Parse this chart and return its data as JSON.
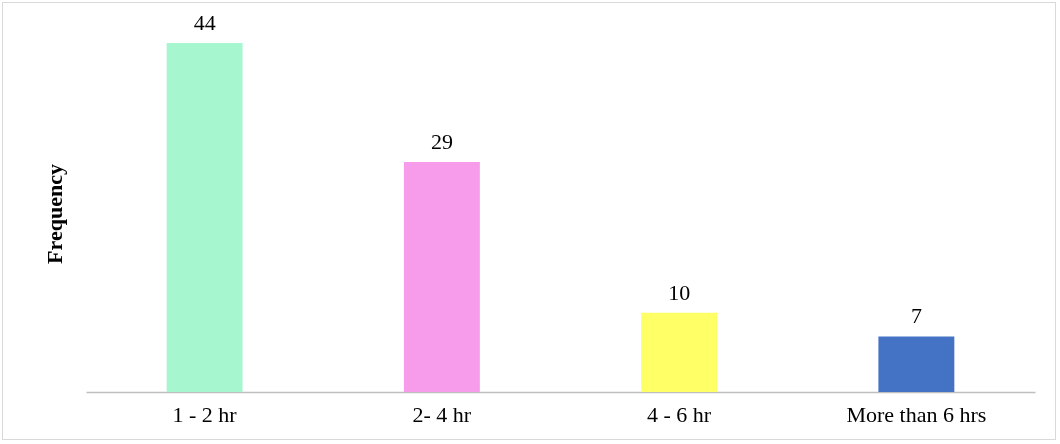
{
  "chart_data": {
    "type": "bar",
    "ylabel": "Frequency",
    "categories": [
      "1 - 2 hr",
      "2- 4  hr",
      "4 - 6 hr",
      "More than 6 hrs"
    ],
    "values": [
      44,
      29,
      10,
      7
    ],
    "colors": [
      "#a6f7d0",
      "#f79ceb",
      "#ffff66",
      "#4472c4"
    ],
    "data_labels": true
  }
}
